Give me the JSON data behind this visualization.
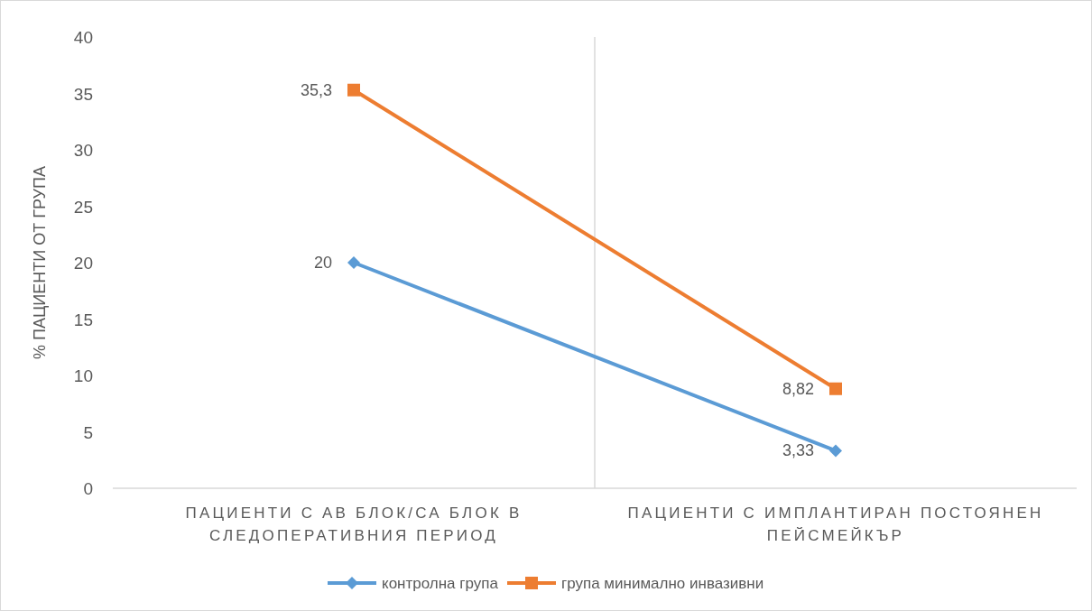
{
  "chart_data": {
    "type": "line",
    "ylabel": "% ПАЦИЕНТИ ОТ ГРУПА",
    "categories": [
      "ПАЦИЕНТИ С АВ БЛОК/СА БЛОК В СЛЕДОПЕРАТИВНИЯ ПЕРИОД",
      "ПАЦИЕНТИ С ИМПЛАНТИРАН ПОСТОЯНЕН ПЕЙСМЕЙКЪР"
    ],
    "series": [
      {
        "name": "контролна група",
        "color": "#5b9bd5",
        "marker": "diamond",
        "values": [
          20,
          3.33
        ],
        "value_labels": [
          "20",
          "3,33"
        ]
      },
      {
        "name": "група минимално инвазивни",
        "color": "#ed7d31",
        "marker": "square",
        "values": [
          35.3,
          8.82
        ],
        "value_labels": [
          "35,3",
          "8,82"
        ]
      }
    ],
    "ylim": [
      0,
      40
    ],
    "yticks": [
      0,
      5,
      10,
      15,
      20,
      25,
      30,
      35,
      40
    ],
    "grid": "x",
    "legend": "bottom",
    "line_style": "solid"
  }
}
